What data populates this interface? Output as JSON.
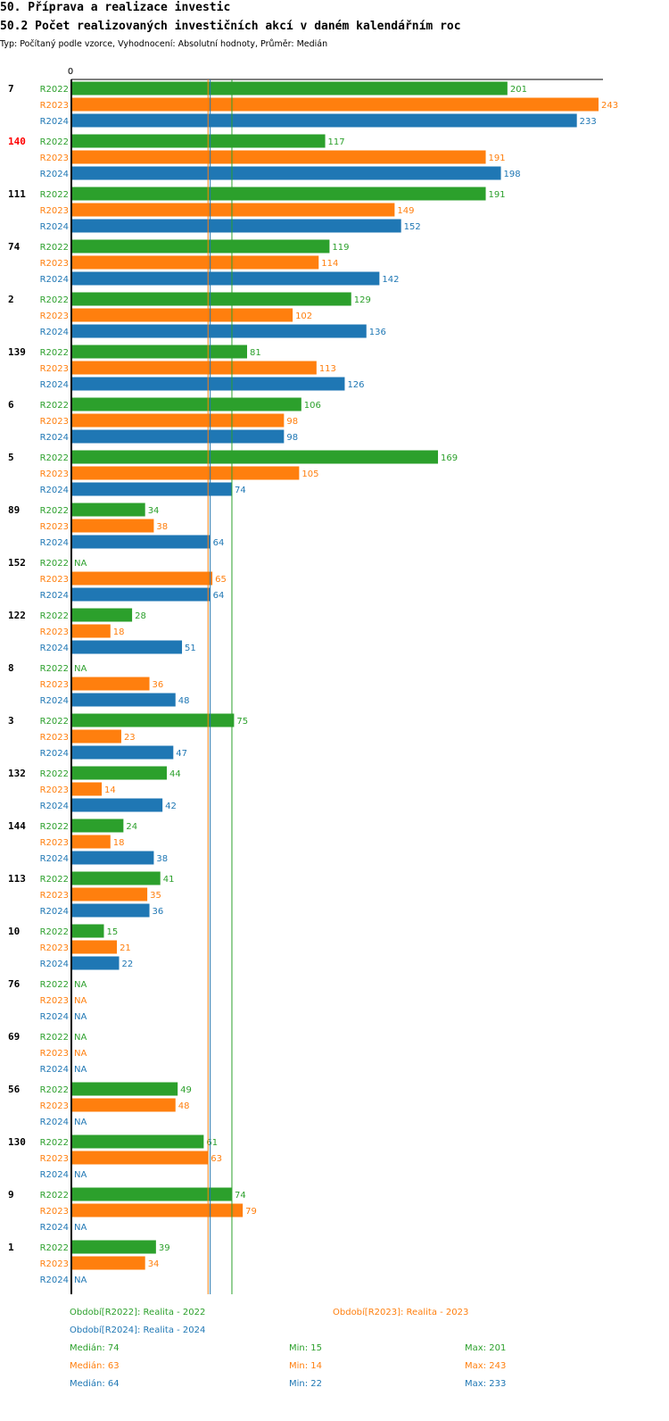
{
  "header": {
    "title": "50. Příprava a realizace investic",
    "subtitle": "50.2 Počet realizovaných investičních akcí v daném kalendářním roc",
    "type_line": "Typ: Počítaný podle vzorce, Vyhodnocení: Absolutní hodnoty, Průměr: Medián"
  },
  "colors": {
    "R2022": "#2ca02c",
    "R2023": "#ff7f0e",
    "R2024": "#1f77b4",
    "highlight": "#ff0000"
  },
  "chart_data": {
    "type": "bar",
    "orientation": "horizontal",
    "x_axis_zero_label": "0",
    "na_label": "NA",
    "series_names": [
      "R2022",
      "R2023",
      "R2024"
    ],
    "categories": [
      "7",
      "140",
      "111",
      "74",
      "2",
      "139",
      "6",
      "5",
      "89",
      "152",
      "122",
      "8",
      "3",
      "132",
      "144",
      "113",
      "10",
      "76",
      "69",
      "56",
      "130",
      "9",
      "1"
    ],
    "highlighted_category": "140",
    "series": [
      {
        "name": "R2022",
        "values": [
          201,
          117,
          191,
          119,
          129,
          81,
          106,
          169,
          34,
          null,
          28,
          null,
          75,
          44,
          24,
          41,
          15,
          null,
          null,
          49,
          61,
          74,
          39
        ]
      },
      {
        "name": "R2023",
        "values": [
          243,
          191,
          149,
          114,
          102,
          113,
          98,
          105,
          38,
          65,
          18,
          36,
          23,
          14,
          18,
          35,
          21,
          null,
          null,
          48,
          63,
          79,
          34
        ]
      },
      {
        "name": "R2024",
        "values": [
          233,
          198,
          152,
          142,
          136,
          126,
          98,
          74,
          64,
          64,
          51,
          48,
          47,
          42,
          38,
          36,
          22,
          null,
          null,
          null,
          null,
          null,
          null
        ]
      }
    ],
    "xlim": [
      0,
      243
    ],
    "medians": {
      "R2022": 74,
      "R2023": 63,
      "R2024": 64
    }
  },
  "legend": {
    "entries": [
      "Období[R2022]: Realita - 2022",
      "Období[R2023]: Realita - 2023",
      "Období[R2024]: Realita - 2024"
    ],
    "stats": [
      {
        "median": "Medián: 74",
        "min": "Min: 15",
        "max": "Max: 201"
      },
      {
        "median": "Medián: 63",
        "min": "Min: 14",
        "max": "Max: 243"
      },
      {
        "median": "Medián: 64",
        "min": "Min: 22",
        "max": "Max: 233"
      }
    ]
  }
}
